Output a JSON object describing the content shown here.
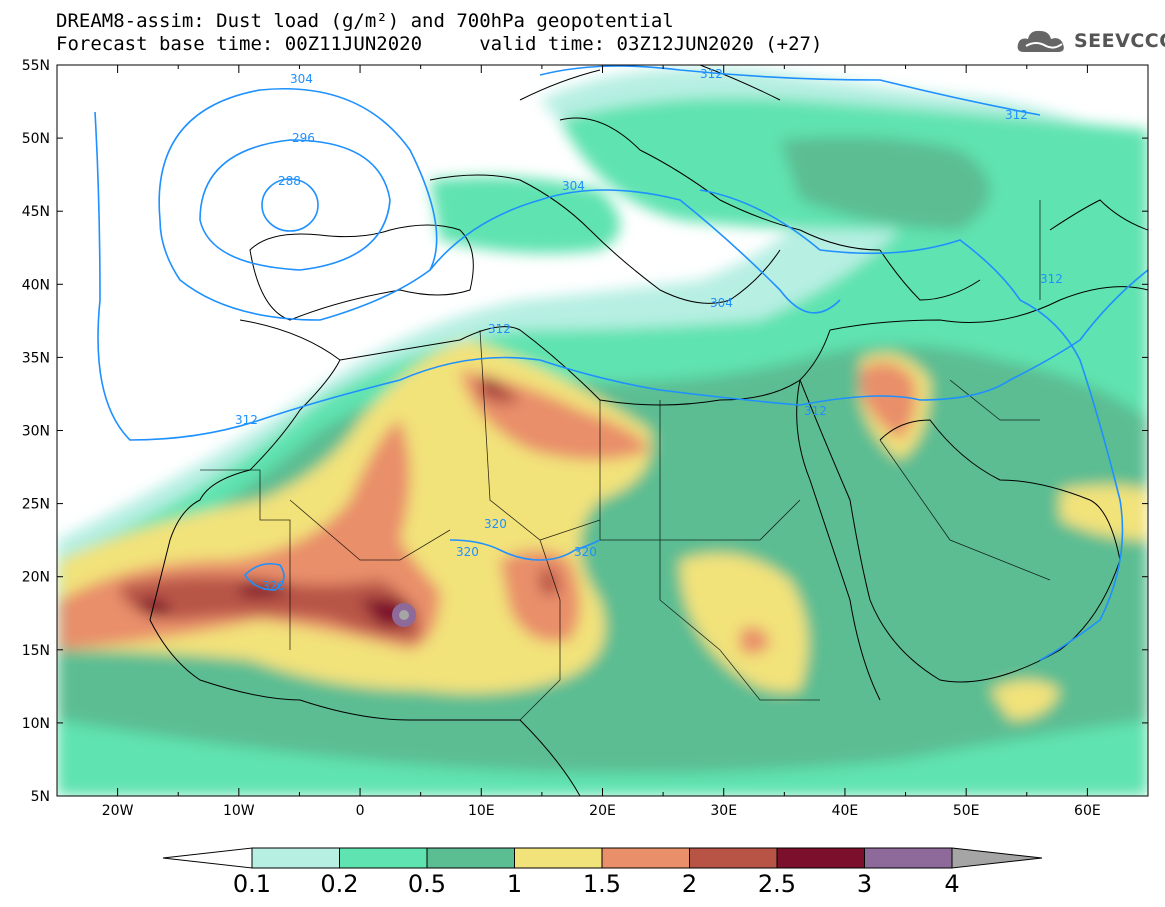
{
  "title": {
    "line1": "DREAM8-assim: Dust load (g/m²) and 700hPa geopotential",
    "line2": "Forecast base time: 00Z11JUN2020     valid time: 03Z12JUN2020 (+27)"
  },
  "logo": {
    "text": "SEEVCCC",
    "icon": "cloud-logo-icon"
  },
  "map": {
    "lon_range": [
      -25,
      65
    ],
    "lat_range": [
      5,
      55
    ],
    "lon_ticks": [
      "20W",
      "10W",
      "0",
      "10E",
      "20E",
      "30E",
      "40E",
      "50E",
      "60E"
    ],
    "lat_ticks": [
      "55N",
      "50N",
      "45N",
      "40N",
      "35N",
      "30N",
      "25N",
      "20N",
      "15N",
      "10N",
      "5N"
    ],
    "contour_labels": [
      "304",
      "296",
      "288",
      "304",
      "304",
      "312",
      "312",
      "312",
      "312",
      "312",
      "312",
      "320",
      "320",
      "320",
      "320"
    ]
  },
  "colorbar": {
    "levels": [
      "0.1",
      "0.2",
      "0.5",
      "1",
      "1.5",
      "2",
      "2.5",
      "3",
      "4"
    ],
    "colors": [
      "#b7efe3",
      "#5fe3b0",
      "#5bbd92",
      "#f2e27a",
      "#e98f6a",
      "#b75446",
      "#7c0f2c",
      "#8e6a9a",
      "#a5a5a5"
    ]
  },
  "chart_data": {
    "type": "heatmap",
    "title": "DREAM8-assim: Dust load (g/m²) and 700hPa geopotential",
    "xlim": [
      -25,
      65
    ],
    "ylim": [
      5,
      55
    ],
    "color_levels": [
      0.1,
      0.2,
      0.5,
      1,
      1.5,
      2,
      2.5,
      3,
      4
    ],
    "contour_levels": [
      288,
      296,
      304,
      312,
      320
    ]
  }
}
